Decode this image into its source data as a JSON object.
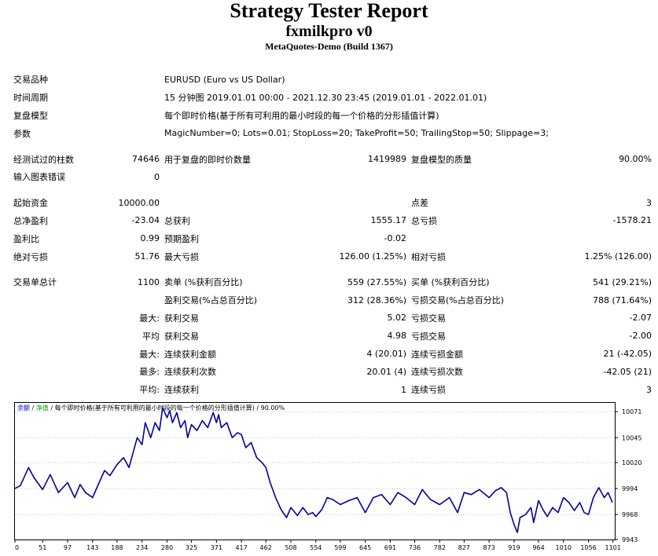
{
  "header": {
    "title": "Strategy Tester Report",
    "expert": "fxmilkpro v0",
    "server": "MetaQuotes-Demo (Build 1367)"
  },
  "info": {
    "symbol_label": "交易品种",
    "symbol": "EURUSD (Euro vs US Dollar)",
    "period_label": "时间周期",
    "period": "15 分钟图 2019.01.01 00:00 - 2021.12.30 23:45 (2019.01.01 - 2022.01.01)",
    "model_label": "复盘模型",
    "model": "每个即时价格(基于所有可利用的最小时段的每一个价格的分形插值计算)",
    "params_label": "参数",
    "params": "MagicNumber=0; Lots=0.01; StopLoss=20; TakeProfit=50; TrailingStop=50; Slippage=3;"
  },
  "stats": {
    "bars_label": "经测试过的柱数",
    "bars": "74646",
    "ticks_label": "用于复盘的即时价数量",
    "ticks": "1419989",
    "quality_label": "复盘模型的质量",
    "quality": "90.00%",
    "errors_label": "输入图表错误",
    "errors": "0",
    "deposit_label": "起始资金",
    "deposit": "10000.00",
    "spread_label": "点差",
    "spread": "3",
    "net_profit_label": "总净盈利",
    "net_profit": "-23.04",
    "gross_profit_label": "总获利",
    "gross_profit": "1555.17",
    "gross_loss_label": "总亏损",
    "gross_loss": "-1578.21",
    "profit_factor_label": "盈利比",
    "profit_factor": "0.99",
    "expected_payoff_label": "预期盈利",
    "expected_payoff": "-0.02",
    "abs_drawdown_label": "绝对亏损",
    "abs_drawdown": "51.76",
    "max_drawdown_label": "最大亏损",
    "max_drawdown": "126.00 (1.25%)",
    "rel_drawdown_label": "相对亏损",
    "rel_drawdown": "1.25% (126.00)",
    "total_trades_label": "交易单总计",
    "total_trades": "1100",
    "short_label": "卖单 (%获利百分比)",
    "short": "559 (27.55%)",
    "long_label": "买单 (%获利百分比)",
    "long": "541 (29.21%)",
    "profit_trades_label": "盈利交易(%占总百分比)",
    "profit_trades": "312 (28.36%)",
    "loss_trades_label": "亏损交易(%占总百分比)",
    "loss_trades": "788 (71.64%)",
    "largest_label": "最大:",
    "largest_profit_label": "获利交易",
    "largest_profit": "5.02",
    "largest_loss_label": "亏损交易",
    "largest_loss": "-2.07",
    "average_label": "平均",
    "average_profit_label": "获利交易",
    "average_profit": "4.98",
    "average_loss_label": "亏损交易",
    "average_loss": "-2.00",
    "max_label": "最大:",
    "max_cons_wins_label": "连续获利金额",
    "max_cons_wins": "4 (20.01)",
    "max_cons_losses_label": "连续亏损金额",
    "max_cons_losses": "21 (-42.05)",
    "maximal_label": "最多:",
    "max_cons_profit_label": "连续获利次数",
    "max_cons_profit": "20.01 (4)",
    "max_cons_loss_label": "连续亏损次数",
    "max_cons_loss": "-42.05 (21)",
    "avg_cons_label": "平均:",
    "avg_cons_wins_label": "连续获利",
    "avg_cons_wins": "1",
    "avg_cons_losses_label": "连续亏损",
    "avg_cons_losses": "3"
  },
  "chart_data": {
    "type": "line",
    "legend": {
      "balance": "余额",
      "sep1": "/",
      "equity": "净值",
      "rest": "/ 每个即时价格(基于所有可利用的最小时段的每一个价格的分形插值计算) / 90.00%"
    },
    "colors": {
      "line": "#0000a0",
      "balance_label": "#0000c0",
      "equity_label": "#00a000",
      "grid": "#c8c8c8"
    },
    "xlim": [
      0,
      1100
    ],
    "ylim": [
      9943,
      10079
    ],
    "x_ticks": [
      0,
      51,
      97,
      143,
      188,
      234,
      280,
      325,
      371,
      417,
      462,
      508,
      554,
      599,
      645,
      691,
      736,
      782,
      827,
      873,
      919,
      964,
      1010,
      1056,
      1101
    ],
    "y_ticks": [
      9943,
      9968,
      9994,
      10020,
      10045,
      10071
    ],
    "series": [
      {
        "x": [
          0,
          10,
          25,
          35,
          51,
          65,
          80,
          97,
          110,
          120,
          130,
          143,
          155,
          165,
          175,
          188,
          200,
          210,
          225,
          234,
          240,
          250,
          258,
          266,
          272,
          280,
          285,
          290,
          298,
          305,
          313,
          318,
          325,
          335,
          345,
          355,
          365,
          371,
          375,
          380,
          390,
          400,
          410,
          417,
          425,
          435,
          445,
          455,
          462,
          470,
          480,
          490,
          500,
          508,
          520,
          530,
          540,
          548,
          554,
          565,
          575,
          585,
          599,
          615,
          630,
          645,
          660,
          675,
          691,
          705,
          720,
          736,
          750,
          765,
          782,
          800,
          815,
          827,
          840,
          855,
          873,
          885,
          895,
          905,
          912,
          919,
          925,
          930,
          940,
          950,
          955,
          964,
          972,
          980,
          990,
          1000,
          1010,
          1020,
          1030,
          1040,
          1048,
          1056,
          1065,
          1075,
          1085,
          1092,
          1100
        ],
        "y": [
          9994,
          9997,
          10015,
          10005,
          9993,
          10008,
          9990,
          10000,
          9985,
          9998,
          9990,
          9985,
          10000,
          10012,
          10007,
          10018,
          10025,
          10015,
          10045,
          10038,
          10060,
          10045,
          10060,
          10052,
          10075,
          10065,
          10072,
          10060,
          10070,
          10055,
          10062,
          10045,
          10058,
          10052,
          10062,
          10055,
          10070,
          10060,
          10068,
          10055,
          10060,
          10045,
          10050,
          10048,
          10035,
          10040,
          10025,
          10020,
          10015,
          10000,
          9985,
          9973,
          9965,
          9975,
          9967,
          9975,
          9968,
          9970,
          9966,
          9973,
          9985,
          9983,
          9978,
          9982,
          9985,
          9970,
          9985,
          9988,
          9978,
          9990,
          9985,
          9978,
          9993,
          9983,
          9978,
          9985,
          9970,
          9990,
          9988,
          9993,
          9985,
          9992,
          9995,
          9990,
          9970,
          9958,
          9950,
          9965,
          9968,
          9975,
          9960,
          9982,
          9973,
          9966,
          9975,
          9970,
          9985,
          9980,
          9972,
          9980,
          9970,
          9968,
          9985,
          9995,
          9985,
          9990,
          9980
        ]
      }
    ]
  }
}
